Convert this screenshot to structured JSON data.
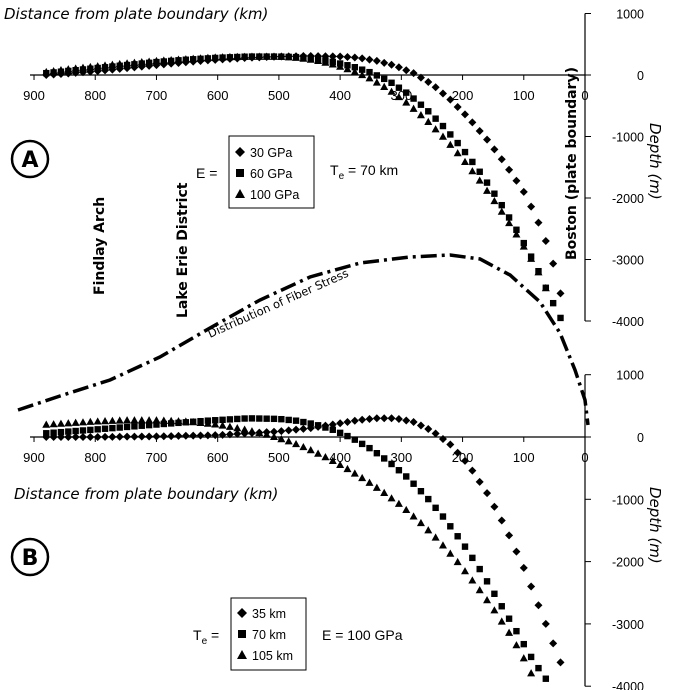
{
  "labels": {
    "x_title_top": "Distance from plate boundary (km)",
    "x_title_bottom": "Distance from plate boundary (km)",
    "y_title_top": "Depth (m)",
    "y_title_bottom": "Depth (m)",
    "panel_a": "A",
    "panel_b": "B",
    "findlay_arch": "Findlay Arch",
    "lake_erie": "Lake Erie District",
    "boston": "Boston (plate boundary)",
    "fiber_stress": "Distribution of Fiber Stress",
    "param_a_e": "E =",
    "param_a_te_t": "T",
    "param_a_te_sub": "e",
    "param_a_te_val": " = 70 km",
    "param_b_te_t": "T",
    "param_b_te_sub": "e",
    "param_b_te_eq": " =",
    "param_b_e": "E = 100 GPa"
  },
  "legend_a": [
    "30 GPa",
    "60 GPa",
    "100 GPa"
  ],
  "legend_b": [
    "35 km",
    "70 km",
    "105 km"
  ],
  "chart_data": [
    {
      "type": "scatter",
      "panel": "A",
      "xlabel": "Distance from plate boundary (km)",
      "ylabel": "Depth (m)",
      "xlim": [
        900,
        0
      ],
      "ylim": [
        -4000,
        1000
      ],
      "xticks": [
        900,
        800,
        700,
        600,
        500,
        400,
        300,
        200,
        100,
        0
      ],
      "yticks": [
        1000,
        0,
        -1000,
        -2000,
        -3000,
        -4000
      ],
      "series": [
        {
          "name": "30 GPa",
          "marker": "diamond",
          "x": [
            880,
            850,
            800,
            750,
            700,
            650,
            600,
            550,
            500,
            450,
            400,
            370,
            340,
            310,
            280,
            250,
            220,
            190,
            160,
            130,
            100,
            80,
            60,
            45,
            35
          ],
          "y": [
            0,
            20,
            60,
            110,
            160,
            210,
            250,
            280,
            300,
            310,
            300,
            280,
            230,
            150,
            30,
            -150,
            -400,
            -700,
            -1050,
            -1450,
            -1900,
            -2300,
            -2800,
            -3300,
            -3800
          ]
        },
        {
          "name": "60 GPa",
          "marker": "square",
          "x": [
            880,
            850,
            800,
            750,
            700,
            650,
            600,
            550,
            500,
            470,
            440,
            410,
            380,
            350,
            320,
            290,
            260,
            230,
            200,
            170,
            140,
            110,
            80,
            60,
            40
          ],
          "y": [
            30,
            60,
            110,
            160,
            210,
            250,
            280,
            300,
            300,
            290,
            260,
            210,
            140,
            40,
            -100,
            -300,
            -550,
            -850,
            -1200,
            -1600,
            -2050,
            -2550,
            -3100,
            -3550,
            -3950
          ]
        },
        {
          "name": "100 GPa",
          "marker": "triangle",
          "x": [
            880,
            850,
            800,
            750,
            700,
            650,
            600,
            550,
            500,
            470,
            440,
            410,
            380,
            350,
            320,
            290,
            260,
            230,
            200,
            170,
            140,
            110,
            80,
            60
          ],
          "y": [
            50,
            90,
            140,
            190,
            230,
            260,
            290,
            300,
            300,
            280,
            240,
            170,
            70,
            -60,
            -240,
            -460,
            -720,
            -1020,
            -1360,
            -1740,
            -2160,
            -2620,
            -3120,
            -3550
          ]
        }
      ],
      "legend": "E =",
      "annotation": "Te = 70 km"
    },
    {
      "type": "line",
      "name": "Distribution of Fiber Stress",
      "style": "dash-dot",
      "x": [
        910,
        850,
        800,
        750,
        700,
        650,
        600,
        550,
        500,
        450,
        400,
        350,
        300,
        270,
        250,
        220,
        200,
        160,
        130,
        100,
        75,
        50,
        25,
        5
      ],
      "y_px": "relative curve shown across panels"
    },
    {
      "type": "scatter",
      "panel": "B",
      "xlabel": "Distance from plate boundary (km)",
      "ylabel": "Depth (m)",
      "xlim": [
        900,
        0
      ],
      "ylim": [
        -4000,
        1000
      ],
      "xticks": [
        900,
        800,
        700,
        600,
        500,
        400,
        300,
        200,
        100,
        0
      ],
      "yticks": [
        1000,
        0,
        -1000,
        -2000,
        -3000,
        -4000
      ],
      "series": [
        {
          "name": "35 km",
          "marker": "diamond",
          "x": [
            880,
            800,
            700,
            600,
            500,
            450,
            400,
            370,
            340,
            310,
            280,
            250,
            220,
            190,
            160,
            130,
            100,
            80,
            60,
            45,
            30
          ],
          "y": [
            0,
            0,
            10,
            30,
            90,
            140,
            220,
            270,
            300,
            300,
            240,
            100,
            -120,
            -450,
            -900,
            -1450,
            -2100,
            -2600,
            -3100,
            -3500,
            -3850
          ]
        },
        {
          "name": "70 km",
          "marker": "square",
          "x": [
            880,
            800,
            700,
            620,
            550,
            500,
            470,
            440,
            410,
            380,
            350,
            320,
            290,
            260,
            230,
            200,
            170,
            140,
            110,
            90,
            70,
            55
          ],
          "y": [
            60,
            120,
            200,
            260,
            300,
            290,
            260,
            200,
            110,
            -20,
            -190,
            -400,
            -650,
            -950,
            -1300,
            -1700,
            -2150,
            -2650,
            -3150,
            -3500,
            -3800,
            -4000
          ]
        },
        {
          "name": "105 km",
          "marker": "triangle",
          "x": [
            880,
            800,
            750,
            700,
            650,
            600,
            560,
            520,
            480,
            450,
            420,
            390,
            360,
            330,
            300,
            270,
            240,
            210,
            180,
            150,
            120,
            100,
            80
          ],
          "y": [
            200,
            250,
            270,
            270,
            250,
            200,
            130,
            40,
            -80,
            -200,
            -340,
            -500,
            -680,
            -880,
            -1100,
            -1360,
            -1650,
            -1980,
            -2350,
            -2750,
            -3200,
            -3550,
            -3950
          ]
        }
      ],
      "legend": "Te =",
      "annotation": "E = 100 GPa"
    }
  ]
}
